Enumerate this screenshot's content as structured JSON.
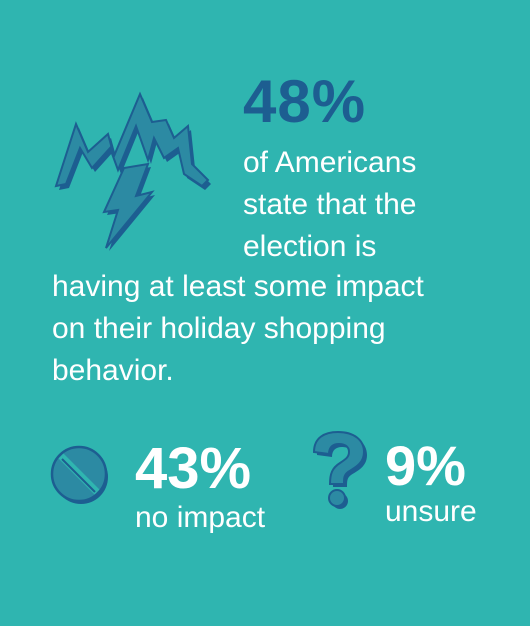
{
  "headline": {
    "stat": "48%",
    "lead_lines": [
      "of Americans",
      "state that the",
      "election is"
    ],
    "body_lines": [
      "having at least some impact",
      "on their holiday shopping",
      "behavior."
    ]
  },
  "breakdown": [
    {
      "stat": "43%",
      "label": "no impact",
      "icon": "no-sign-icon"
    },
    {
      "stat": "9%",
      "label": "unsure",
      "icon": "question-mark-icon"
    }
  ],
  "colors": {
    "background": "#2fb5b0",
    "accent": "#1d5e91",
    "text": "#ffffff"
  }
}
